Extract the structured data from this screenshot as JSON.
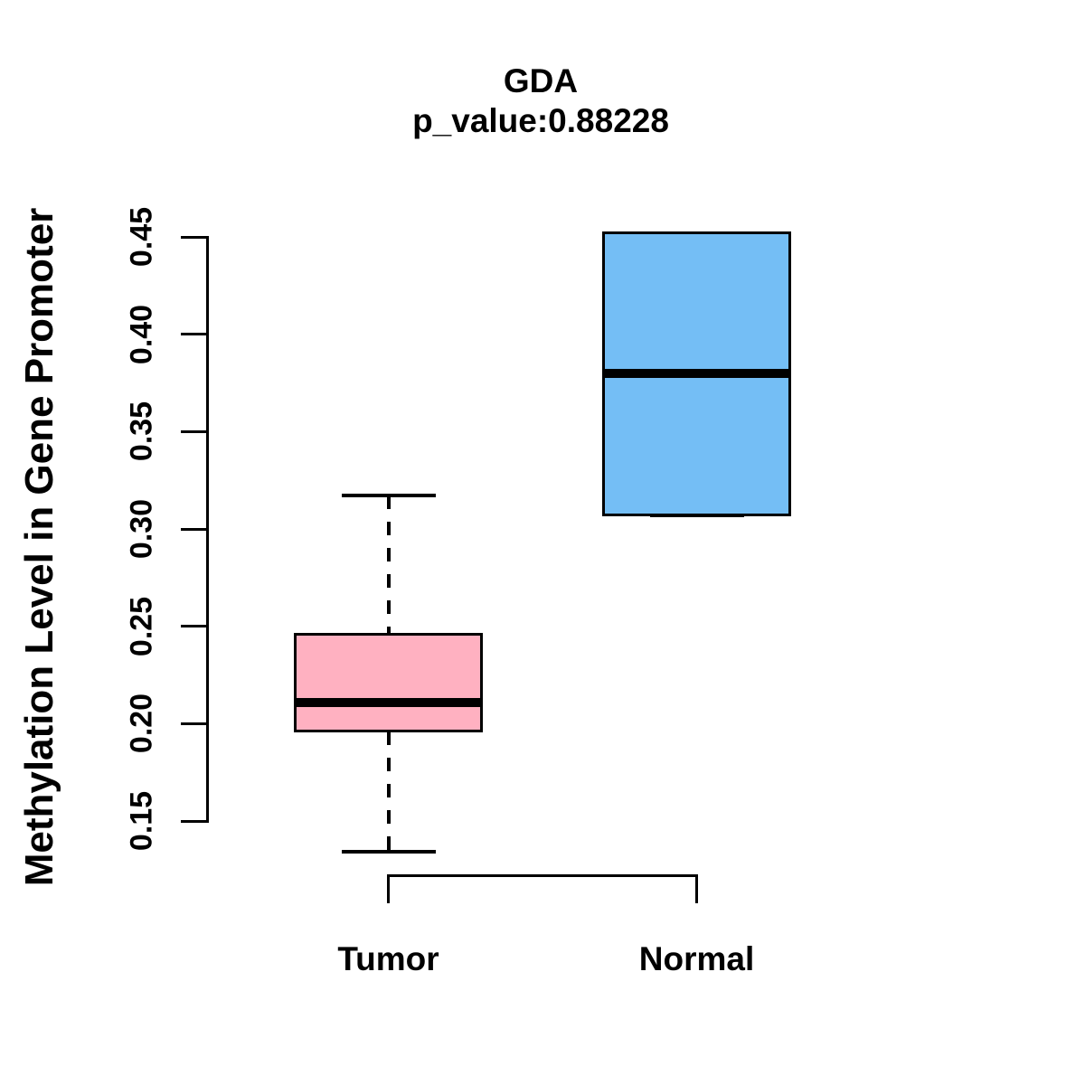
{
  "title": "GDA",
  "subtitle": "p_value:0.88228",
  "chart_data": {
    "type": "boxplot",
    "title": "GDA",
    "subtitle": "p_value:0.88228",
    "ylabel": "Methylation Level in Gene Promoter",
    "xlabel": "",
    "ylim": [
      0.15,
      0.45
    ],
    "yticks": [
      0.15,
      0.2,
      0.25,
      0.3,
      0.35,
      0.4,
      0.45
    ],
    "ytick_labels": [
      "0.15",
      "0.20",
      "0.25",
      "0.30",
      "0.35",
      "0.40",
      "0.45"
    ],
    "categories": [
      "Tumor",
      "Normal"
    ],
    "grid": false,
    "legend": "none",
    "groups": [
      {
        "label": "Tumor",
        "fill_color": "#FFB1C1",
        "min": 0.134,
        "q1": 0.196,
        "median": 0.211,
        "q3": 0.246,
        "max": 0.317
      },
      {
        "label": "Normal",
        "fill_color": "#74BEF5",
        "min": 0.307,
        "q1": 0.307,
        "median": 0.38,
        "q3": 0.452,
        "max": 0.452
      }
    ]
  },
  "colors": {
    "tumor_fill": "#FFB1C1",
    "normal_fill": "#74BEF5",
    "stroke": "#000000",
    "background": "#FFFFFF"
  }
}
